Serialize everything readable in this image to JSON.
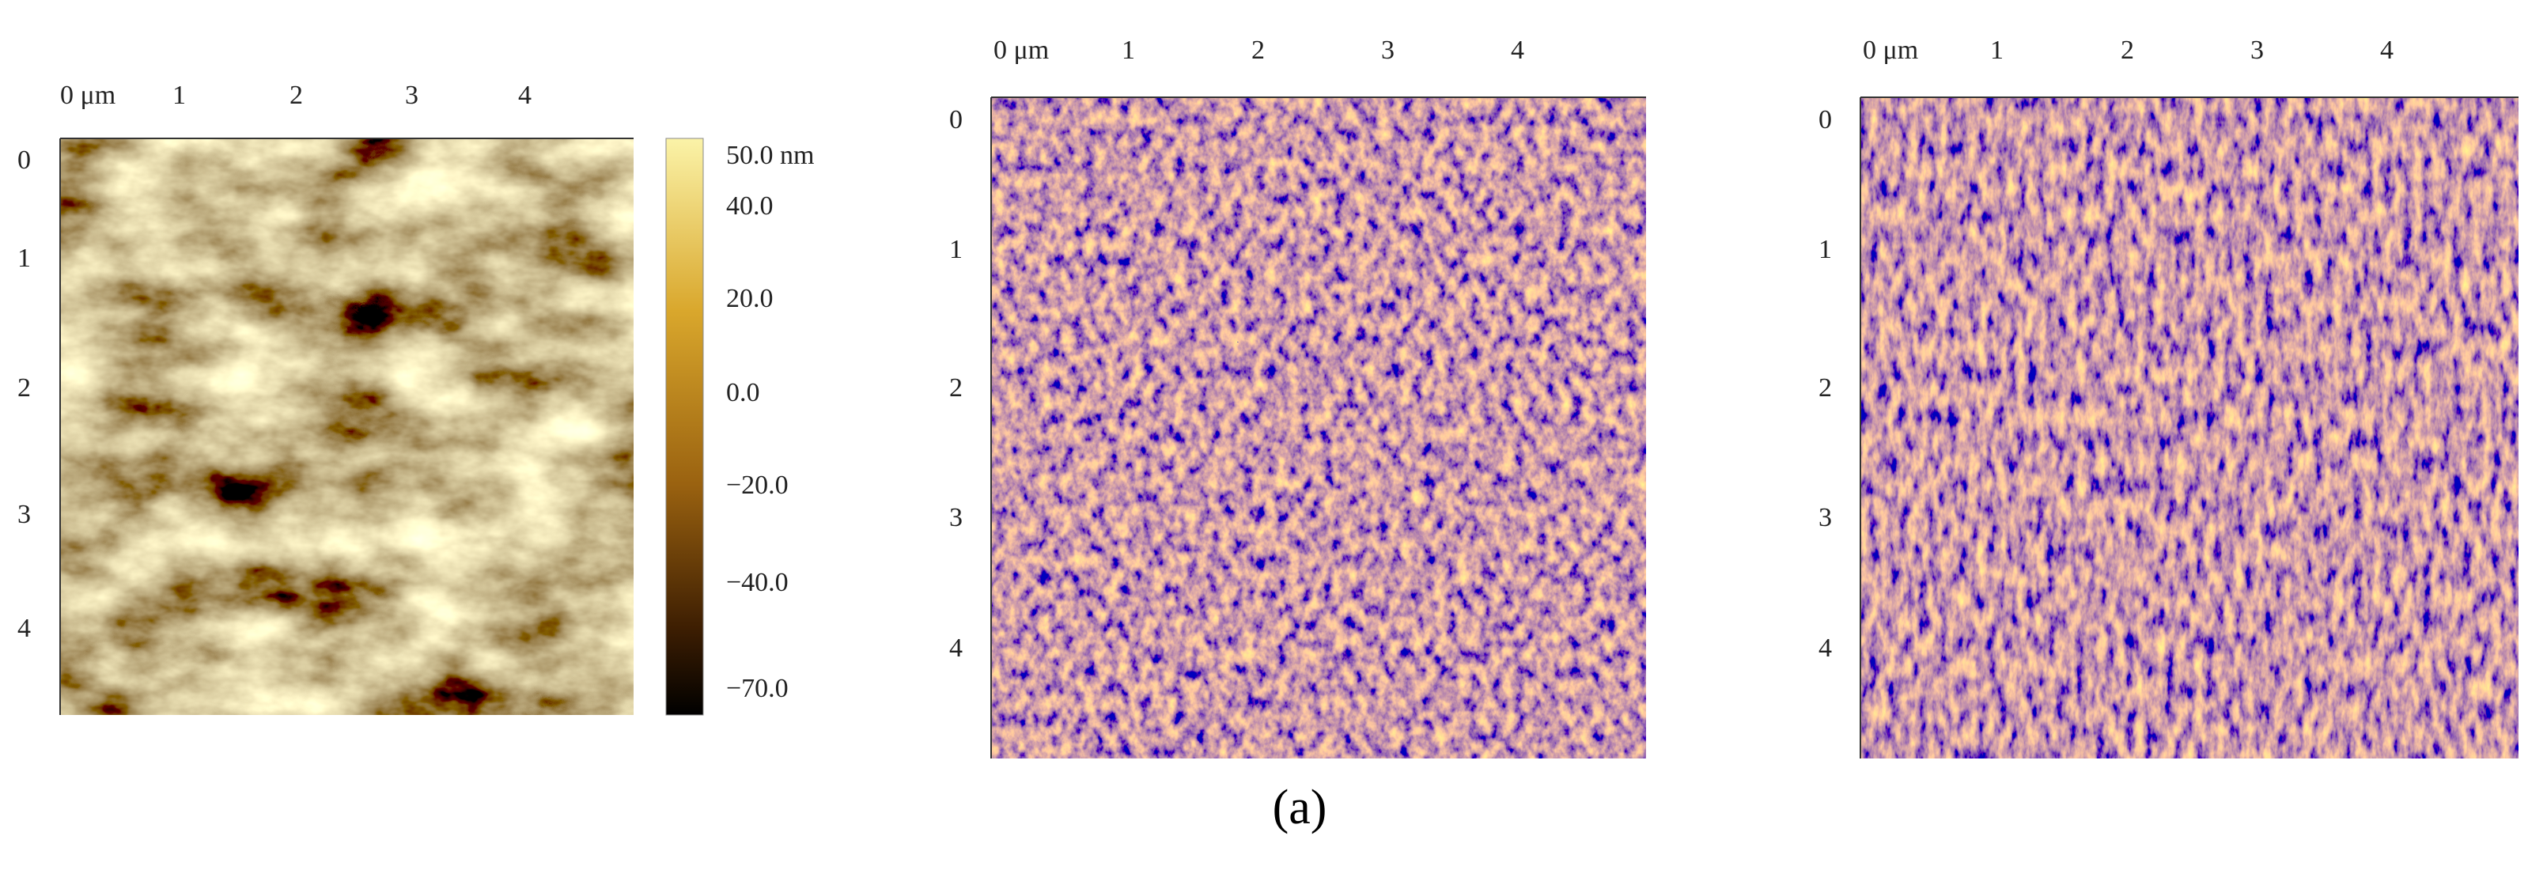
{
  "panels": [
    {
      "x_ticks": [
        "0 μm",
        "1",
        "2",
        "3",
        "4"
      ],
      "y_ticks": [
        "0",
        "1",
        "2",
        "3",
        "4"
      ],
      "colorbar": {
        "labels": [
          "50.0 nm",
          "40.0",
          "20.0",
          "0.0",
          "−20.0",
          "−40.0",
          "−70.0"
        ]
      }
    },
    {
      "x_ticks": [
        "0 μm",
        "1",
        "2",
        "3",
        "4"
      ],
      "y_ticks": [
        "0",
        "1",
        "2",
        "3",
        "4"
      ]
    },
    {
      "x_ticks": [
        "0 μm",
        "1",
        "2",
        "3",
        "4"
      ],
      "y_ticks": [
        "0",
        "1",
        "2",
        "3",
        "4"
      ]
    }
  ],
  "caption": "(a)"
}
